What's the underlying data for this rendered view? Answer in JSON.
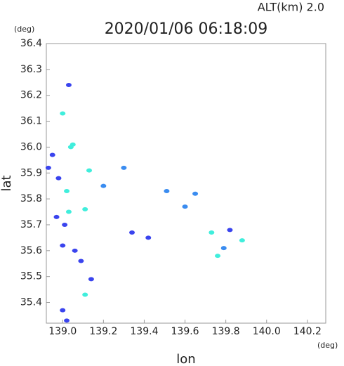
{
  "chart_data": {
    "type": "scatter",
    "title": "2020/01/06 06:18:09",
    "subtitle": "ALT(km)  2.0",
    "x_label": "lon",
    "y_label": "lat",
    "x_unit": "(deg)",
    "y_unit": "(deg)",
    "xlim": [
      138.92,
      140.29
    ],
    "ylim": [
      35.32,
      36.4
    ],
    "xticks": [
      {
        "value": 139,
        "label": "139.0"
      },
      139.2,
      139.4,
      139.6,
      139.8,
      {
        "value": 140,
        "label": "140.0"
      },
      140.2
    ],
    "yticks": [
      35.4,
      35.5,
      35.6,
      35.7,
      35.8,
      35.9,
      {
        "value": 36,
        "label": "36.0"
      },
      36.1,
      36.2,
      36.3,
      36.4
    ],
    "series": [
      {
        "color": "#3a44ee",
        "x": [
          139.03,
          138.95,
          138.93,
          138.98,
          138.97,
          139.01,
          139.0,
          139.06,
          139.09,
          139.14,
          139.0,
          139.02,
          139.34,
          139.42,
          139.82
        ],
        "y": [
          36.24,
          35.97,
          35.92,
          35.88,
          35.73,
          35.7,
          35.62,
          35.6,
          35.56,
          35.49,
          35.37,
          35.33,
          35.67,
          35.65,
          35.68
        ]
      },
      {
        "color": "#3a8cf0",
        "x": [
          139.2,
          139.3,
          139.51,
          139.6,
          139.65,
          139.79
        ],
        "y": [
          35.85,
          35.92,
          35.83,
          35.77,
          35.82,
          35.61
        ]
      },
      {
        "color": "#40eedc",
        "x": [
          139.0,
          139.05,
          139.02,
          139.03,
          139.11,
          139.13,
          139.73,
          139.88,
          139.76,
          139.11,
          139.04
        ],
        "y": [
          36.13,
          36.01,
          35.83,
          35.75,
          35.43,
          35.91,
          35.67,
          35.64,
          35.58,
          35.76,
          36.0
        ]
      }
    ]
  }
}
